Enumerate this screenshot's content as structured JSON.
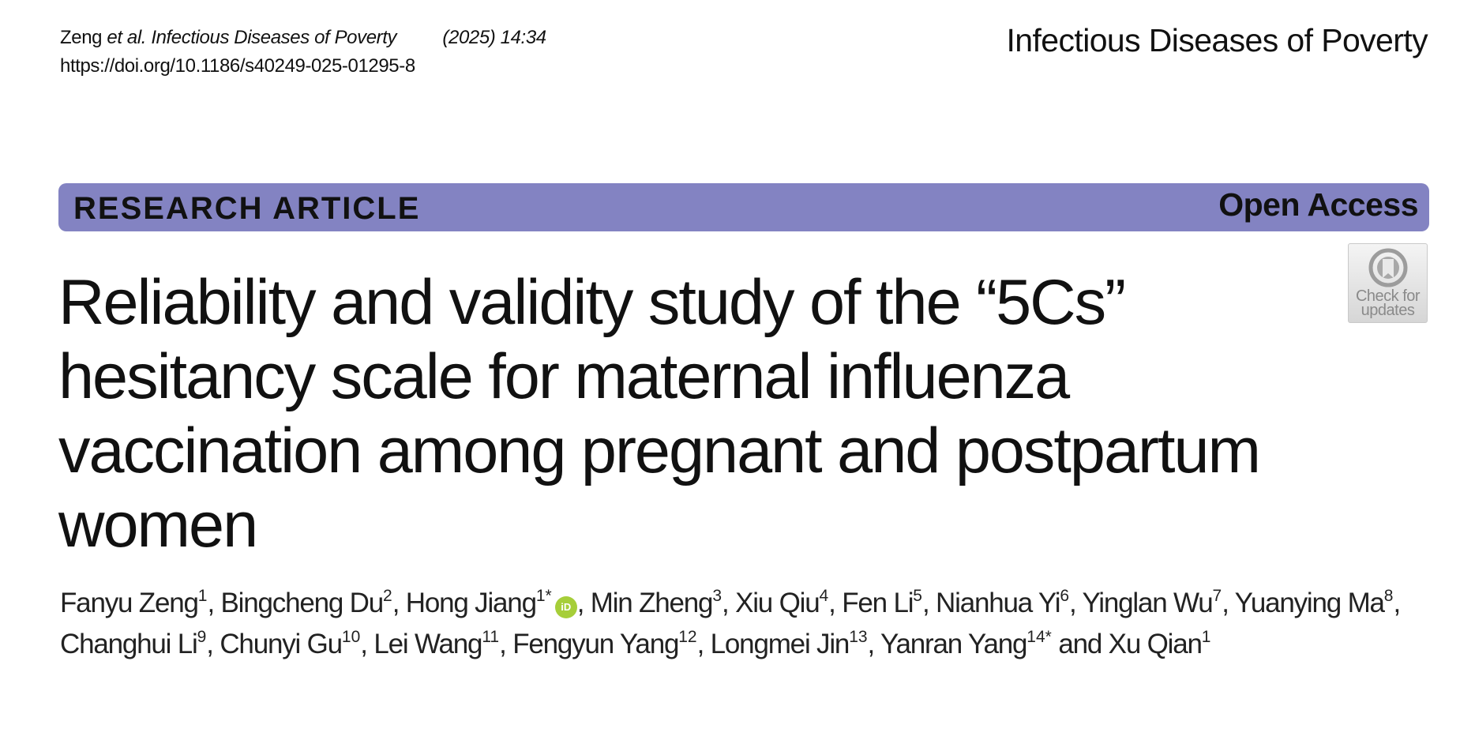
{
  "header": {
    "author_short": "Zeng",
    "et_al": "et al.",
    "journal_italic": "Infectious Diseases of Poverty",
    "year_vol": "(2025) 14:34",
    "doi": "https://doi.org/10.1186/s40249-025-01295-8",
    "journal_name": "Infectious Diseases of Poverty"
  },
  "banner": {
    "article_type": "RESEARCH ARTICLE",
    "access": "Open Access",
    "color": "#8383c2"
  },
  "crossmark": {
    "label_line1": "Check for",
    "label_line2": "updates",
    "icon": "crossmark-icon"
  },
  "title": {
    "line1": "Reliability and validity study of the “5Cs”",
    "line2": "hesitancy scale for maternal influenza",
    "line3": "vaccination among pregnant and postpartum",
    "line4": "women"
  },
  "authors": [
    {
      "name": "Fanyu Zeng",
      "aff": "1",
      "sep": ", "
    },
    {
      "name": "Bingcheng Du",
      "aff": "2",
      "sep": ", "
    },
    {
      "name": "Hong Jiang",
      "aff": "1*",
      "orcid": "iD",
      "sep": ", "
    },
    {
      "name": "Min Zheng",
      "aff": "3",
      "sep": ", "
    },
    {
      "name": "Xiu Qiu",
      "aff": "4",
      "sep": ", "
    },
    {
      "name": "Fen Li",
      "aff": "5",
      "sep": ", "
    },
    {
      "name": "Nianhua Yi",
      "aff": "6",
      "sep": ", "
    },
    {
      "name": "Yinglan Wu",
      "aff": "7",
      "sep": ", "
    },
    {
      "name": "Yuanying Ma",
      "aff": "8",
      "sep": ", "
    },
    {
      "name": "Changhui Li",
      "aff": "9",
      "sep": ", "
    },
    {
      "name": "Chunyi Gu",
      "aff": "10",
      "sep": ", "
    },
    {
      "name": "Lei Wang",
      "aff": "11",
      "sep": ", "
    },
    {
      "name": "Fengyun Yang",
      "aff": "12",
      "sep": ", "
    },
    {
      "name": "Longmei Jin",
      "aff": "13",
      "sep": ", "
    },
    {
      "name": "Yanran Yang",
      "aff": "14*",
      "sep": " and "
    },
    {
      "name": "Xu Qian",
      "aff": "1",
      "sep": ""
    }
  ]
}
